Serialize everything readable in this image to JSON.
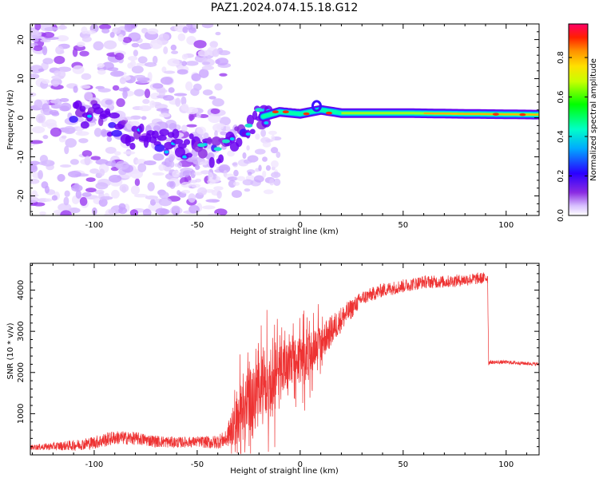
{
  "title": "PAZ1.2024.074.15.18.G12",
  "chart_data": [
    {
      "type": "heatmap",
      "xlabel": "Height of straight line (km)",
      "ylabel": "Frequency (Hz)",
      "xlim": [
        -131,
        116
      ],
      "ylim": [
        -25,
        24
      ],
      "xticks": [
        -100,
        -50,
        0,
        50,
        100
      ],
      "yticks": [
        -20,
        -10,
        0,
        10,
        20
      ],
      "grid": false,
      "colorbar": {
        "label": "Normalized spectral amplitude",
        "range": [
          0,
          0.97
        ],
        "ticks": [
          0.0,
          0.2,
          0.4,
          0.6,
          0.8
        ],
        "colormap": "gist_rainbow_r"
      },
      "ridge": {
        "description_points": [
          {
            "x": -100,
            "y": 1
          },
          {
            "x": -90,
            "y": -2
          },
          {
            "x": -80,
            "y": -5
          },
          {
            "x": -70,
            "y": -6
          },
          {
            "x": -60,
            "y": -7
          },
          {
            "x": -50,
            "y": -8
          },
          {
            "x": -40,
            "y": -9
          },
          {
            "x": -30,
            "y": -5
          },
          {
            "x": -20,
            "y": 0
          },
          {
            "x": -10,
            "y": 1.5
          },
          {
            "x": 0,
            "y": 1
          },
          {
            "x": 10,
            "y": 2
          },
          {
            "x": 20,
            "y": 1.2
          },
          {
            "x": 50,
            "y": 1.2
          },
          {
            "x": 80,
            "y": 1
          },
          {
            "x": 116,
            "y": 0.8
          }
        ]
      }
    },
    {
      "type": "line",
      "xlabel": "Height of straight line (km)",
      "ylabel": "SNR (10 * v/v)",
      "xlim": [
        -131,
        116
      ],
      "ylim": [
        0,
        4650
      ],
      "xticks": [
        -100,
        -50,
        0,
        50,
        100
      ],
      "yticks": [
        1000,
        2000,
        3000,
        4000
      ],
      "grid": false,
      "series": [
        {
          "color": "#ee3333",
          "trend": [
            {
              "x": -131,
              "y": 180
            },
            {
              "x": -110,
              "y": 230
            },
            {
              "x": -100,
              "y": 300
            },
            {
              "x": -90,
              "y": 420
            },
            {
              "x": -80,
              "y": 400
            },
            {
              "x": -70,
              "y": 330
            },
            {
              "x": -60,
              "y": 300
            },
            {
              "x": -50,
              "y": 320
            },
            {
              "x": -42,
              "y": 300
            },
            {
              "x": -36,
              "y": 380
            },
            {
              "x": -32,
              "y": 800
            },
            {
              "x": -25,
              "y": 1300
            },
            {
              "x": -18,
              "y": 1700
            },
            {
              "x": -10,
              "y": 2000
            },
            {
              "x": 0,
              "y": 2300
            },
            {
              "x": 10,
              "y": 2700
            },
            {
              "x": 20,
              "y": 3300
            },
            {
              "x": 30,
              "y": 3800
            },
            {
              "x": 40,
              "y": 4000
            },
            {
              "x": 50,
              "y": 4100
            },
            {
              "x": 60,
              "y": 4200
            },
            {
              "x": 70,
              "y": 4200
            },
            {
              "x": 80,
              "y": 4250
            },
            {
              "x": 91,
              "y": 4300
            },
            {
              "x": 91.5,
              "y": 2250
            },
            {
              "x": 100,
              "y": 2250
            },
            {
              "x": 116,
              "y": 2200
            }
          ],
          "noise_amplitude": [
            {
              "x": -131,
              "a": 120
            },
            {
              "x": -95,
              "a": 350
            },
            {
              "x": -50,
              "a": 250
            },
            {
              "x": -36,
              "a": 400
            },
            {
              "x": -30,
              "a": 1500
            },
            {
              "x": -15,
              "a": 1500
            },
            {
              "x": 10,
              "a": 900
            },
            {
              "x": 30,
              "a": 350
            },
            {
              "x": 91,
              "a": 280
            },
            {
              "x": 92,
              "a": 90
            },
            {
              "x": 116,
              "a": 90
            }
          ]
        }
      ]
    }
  ]
}
